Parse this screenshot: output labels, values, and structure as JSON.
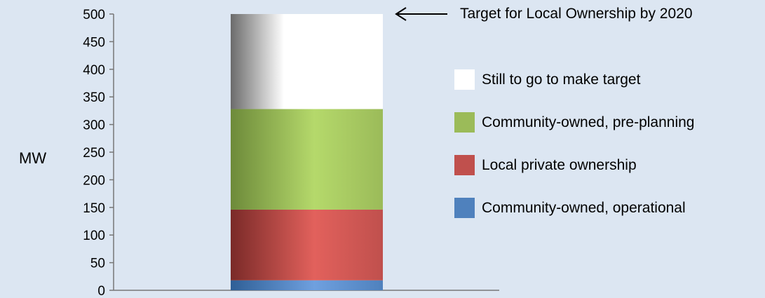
{
  "chart_data": {
    "type": "bar",
    "stacked": true,
    "categories": [
      ""
    ],
    "series": [
      {
        "name": "Community-owned, operational",
        "values": [
          18
        ],
        "color": "#4f81bd"
      },
      {
        "name": "Local private ownership",
        "values": [
          128
        ],
        "color": "#c0504d"
      },
      {
        "name": "Community-owned, pre-planning",
        "values": [
          182
        ],
        "color": "#9bbb59"
      },
      {
        "name": "Still to go to make target",
        "values": [
          172
        ],
        "color": "#ffffff"
      }
    ],
    "ylabel": "MW",
    "ylim": [
      0,
      500
    ],
    "yticks": [
      0,
      50,
      100,
      150,
      200,
      250,
      300,
      350,
      400,
      450,
      500
    ],
    "grid": false,
    "legend_position": "right",
    "annotation": {
      "text": "Target for Local Ownership by 2020",
      "value": 500
    }
  }
}
